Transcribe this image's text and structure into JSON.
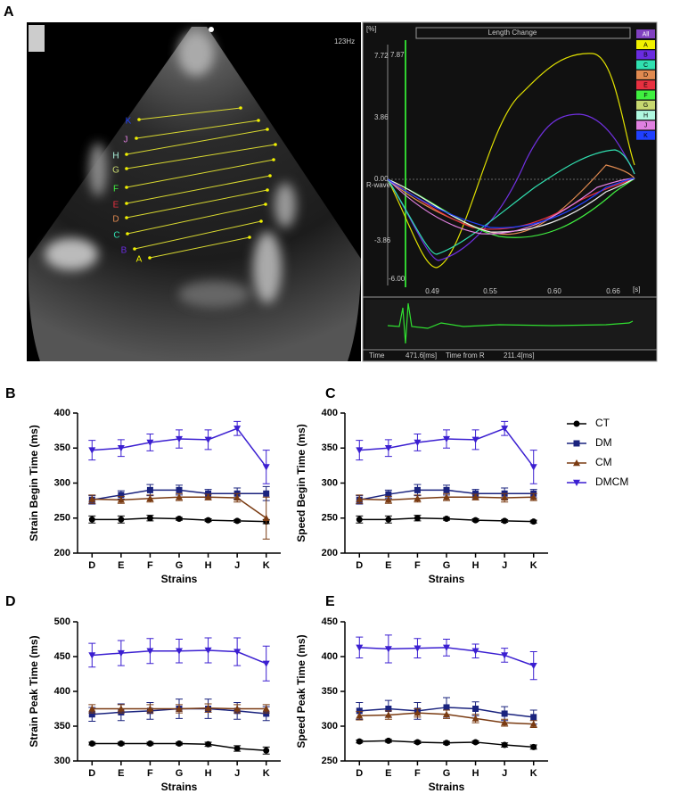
{
  "panel_a": {
    "label": "A",
    "frame_rate": "123Hz",
    "graph_title": "Length Change",
    "y_unit": "[%]",
    "x_unit": "[s]",
    "r_wave": "R-wave",
    "y_tick_labels": [
      "7.72",
      "3.86",
      "0.00",
      "-3.86",
      "-6.00"
    ],
    "cursor_value": "7.87",
    "x_tick_labels": [
      "0.49",
      "0.55",
      "0.60",
      "0.66"
    ],
    "time_label": "Time",
    "time_value": "471.6[ms]",
    "time_from_r_label": "Time from R",
    "time_from_r_value": "211.4[ms]",
    "all_button": "All",
    "segments": [
      {
        "label": "A",
        "color": "#f0f000"
      },
      {
        "label": "B",
        "color": "#6a2ce0"
      },
      {
        "label": "C",
        "color": "#30e0b0"
      },
      {
        "label": "D",
        "color": "#e08a50"
      },
      {
        "label": "E",
        "color": "#e83040"
      },
      {
        "label": "F",
        "color": "#40f040"
      },
      {
        "label": "G",
        "color": "#c8d870"
      },
      {
        "label": "H",
        "color": "#b0f8e0"
      },
      {
        "label": "J",
        "color": "#e080e0"
      },
      {
        "label": "K",
        "color": "#2040ff"
      }
    ]
  },
  "chart_data": [
    {
      "type": "line",
      "panel": "B",
      "y_label": "Strain Begin Time (ms)",
      "x_label": "Strains",
      "categories": [
        "D",
        "E",
        "F",
        "G",
        "H",
        "J",
        "K"
      ],
      "ylim": [
        200,
        400
      ],
      "yticks": [
        200,
        250,
        300,
        350,
        400
      ],
      "series": [
        {
          "name": "CT",
          "color": "#000000",
          "marker": "circle",
          "values": [
            248,
            248,
            250,
            249,
            247,
            246,
            245
          ],
          "errors": [
            5,
            5,
            4,
            2,
            2,
            2,
            3
          ]
        },
        {
          "name": "DM",
          "color": "#1a237e",
          "marker": "square",
          "values": [
            276,
            283,
            290,
            290,
            285,
            285,
            285
          ],
          "errors": [
            6,
            6,
            8,
            7,
            6,
            8,
            10
          ]
        },
        {
          "name": "CM",
          "color": "#7a3b12",
          "marker": "triangle-up",
          "values": [
            277,
            276,
            278,
            280,
            280,
            279,
            250
          ],
          "errors": [
            6,
            5,
            5,
            5,
            4,
            6,
            30
          ]
        },
        {
          "name": "DMCM",
          "color": "#3b1fd1",
          "marker": "triangle-down",
          "values": [
            347,
            350,
            358,
            363,
            362,
            378,
            323
          ],
          "errors": [
            14,
            12,
            12,
            13,
            14,
            10,
            24
          ]
        }
      ]
    },
    {
      "type": "line",
      "panel": "C",
      "y_label": "Speed Begin Time (ms)",
      "x_label": "Strains",
      "legend": "right",
      "categories": [
        "D",
        "E",
        "F",
        "G",
        "H",
        "J",
        "K"
      ],
      "ylim": [
        200,
        400
      ],
      "yticks": [
        200,
        250,
        300,
        350,
        400
      ],
      "series": [
        {
          "name": "CT",
          "color": "#000000",
          "marker": "circle",
          "values": [
            248,
            248,
            250,
            249,
            247,
            246,
            245
          ],
          "errors": [
            5,
            5,
            4,
            2,
            2,
            2,
            2
          ]
        },
        {
          "name": "DM",
          "color": "#1a237e",
          "marker": "square",
          "values": [
            276,
            284,
            290,
            290,
            285,
            285,
            285
          ],
          "errors": [
            6,
            6,
            8,
            7,
            6,
            8,
            6
          ]
        },
        {
          "name": "CM",
          "color": "#7a3b12",
          "marker": "triangle-up",
          "values": [
            277,
            276,
            278,
            280,
            280,
            279,
            280
          ],
          "errors": [
            6,
            5,
            5,
            5,
            4,
            6,
            5
          ]
        },
        {
          "name": "DMCM",
          "color": "#3b1fd1",
          "marker": "triangle-down",
          "values": [
            347,
            350,
            358,
            363,
            362,
            378,
            323
          ],
          "errors": [
            14,
            12,
            12,
            13,
            14,
            10,
            24
          ]
        }
      ]
    },
    {
      "type": "line",
      "panel": "D",
      "y_label": "Strain Peak Time (ms)",
      "x_label": "Strains",
      "categories": [
        "D",
        "E",
        "F",
        "G",
        "H",
        "J",
        "K"
      ],
      "ylim": [
        300,
        500
      ],
      "yticks": [
        300,
        350,
        400,
        450,
        500
      ],
      "series": [
        {
          "name": "CT",
          "color": "#000000",
          "marker": "circle",
          "values": [
            325,
            325,
            325,
            325,
            324,
            318,
            315
          ],
          "errors": [
            2,
            2,
            2,
            2,
            3,
            4,
            5
          ]
        },
        {
          "name": "DM",
          "color": "#1a237e",
          "marker": "square",
          "values": [
            367,
            370,
            372,
            375,
            375,
            372,
            368
          ],
          "errors": [
            10,
            12,
            12,
            14,
            14,
            12,
            10
          ]
        },
        {
          "name": "CM",
          "color": "#7a3b12",
          "marker": "triangle-up",
          "values": [
            375,
            375,
            375,
            375,
            376,
            375,
            375
          ],
          "errors": [
            6,
            6,
            6,
            6,
            6,
            6,
            6
          ]
        },
        {
          "name": "DMCM",
          "color": "#3b1fd1",
          "marker": "triangle-down",
          "values": [
            452,
            455,
            458,
            458,
            459,
            457,
            440
          ],
          "errors": [
            17,
            18,
            18,
            17,
            18,
            20,
            25
          ]
        }
      ]
    },
    {
      "type": "line",
      "panel": "E",
      "y_label": "Speed Peak Time (ms)",
      "x_label": "Strains",
      "categories": [
        "D",
        "E",
        "F",
        "G",
        "H",
        "J",
        "K"
      ],
      "ylim": [
        250,
        450
      ],
      "yticks": [
        250,
        300,
        350,
        400,
        450
      ],
      "series": [
        {
          "name": "CT",
          "color": "#000000",
          "marker": "circle",
          "values": [
            278,
            279,
            277,
            276,
            277,
            273,
            270
          ],
          "errors": [
            2,
            2,
            2,
            2,
            2,
            3,
            3
          ]
        },
        {
          "name": "DM",
          "color": "#1a237e",
          "marker": "square",
          "values": [
            322,
            325,
            322,
            327,
            325,
            318,
            313
          ],
          "errors": [
            12,
            12,
            12,
            14,
            10,
            10,
            10
          ]
        },
        {
          "name": "CM",
          "color": "#7a3b12",
          "marker": "triangle-up",
          "values": [
            315,
            316,
            319,
            317,
            311,
            305,
            303
          ],
          "errors": [
            6,
            6,
            6,
            6,
            6,
            5,
            5
          ]
        },
        {
          "name": "DMCM",
          "color": "#3b1fd1",
          "marker": "triangle-down",
          "values": [
            413,
            411,
            412,
            413,
            408,
            402,
            387
          ],
          "errors": [
            15,
            20,
            14,
            12,
            10,
            10,
            20
          ]
        }
      ]
    }
  ]
}
